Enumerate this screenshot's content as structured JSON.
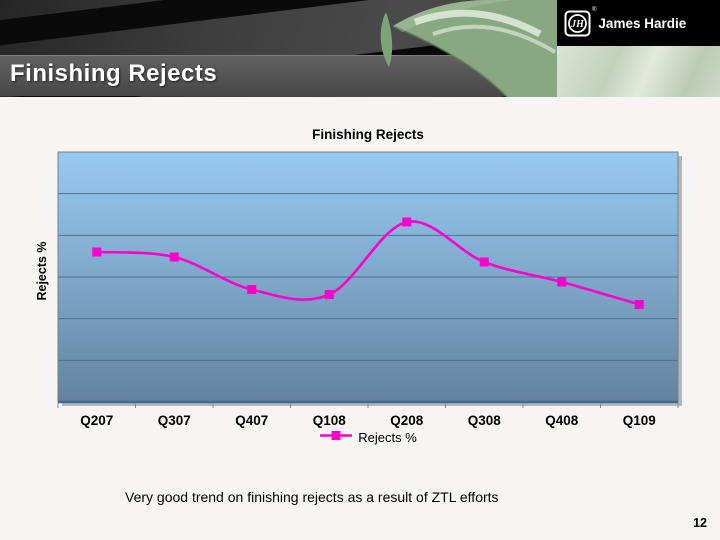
{
  "slide": {
    "header": {
      "title": "Finishing Rejects",
      "logo": {
        "monogram": "JH",
        "registered": "®",
        "wordmark": "James Hardie"
      }
    },
    "chart": {
      "title": "Finishing Rejects",
      "y_axis_label": "Rejects %",
      "legend_label": "Rejects %"
    },
    "caption": "Very good trend on finishing rejects as a result of ZTL efforts",
    "page_number": "12"
  },
  "chart_data": {
    "type": "line",
    "title": "Finishing Rejects",
    "categories": [
      "Q207",
      "Q307",
      "Q407",
      "Q108",
      "Q208",
      "Q308",
      "Q408",
      "Q109"
    ],
    "series": [
      {
        "name": "Rejects %",
        "values": [
          60,
          58,
          45,
          43,
          72,
          56,
          48,
          39
        ]
      }
    ],
    "xlabel": "",
    "ylabel": "Rejects %",
    "ylim": [
      0,
      100
    ],
    "y_tick_labels": [],
    "gridlines": "horizontal, 6 equal bands",
    "legend_position": "bottom-center",
    "line_style": "smooth curve with square markers",
    "value_note": "y-axis shows no numeric tick labels; values estimated as percent of plot height",
    "colors": {
      "line": "#ff00cc",
      "plot_bg_top": "#97c9f2",
      "plot_bg_mid": "#7fa8cb",
      "plot_bg_bottom": "#64829f",
      "gridline": "#4d7290",
      "axis": "#44688a",
      "plot_border": "#7f7f7f",
      "tick": "#7d8a96"
    }
  }
}
